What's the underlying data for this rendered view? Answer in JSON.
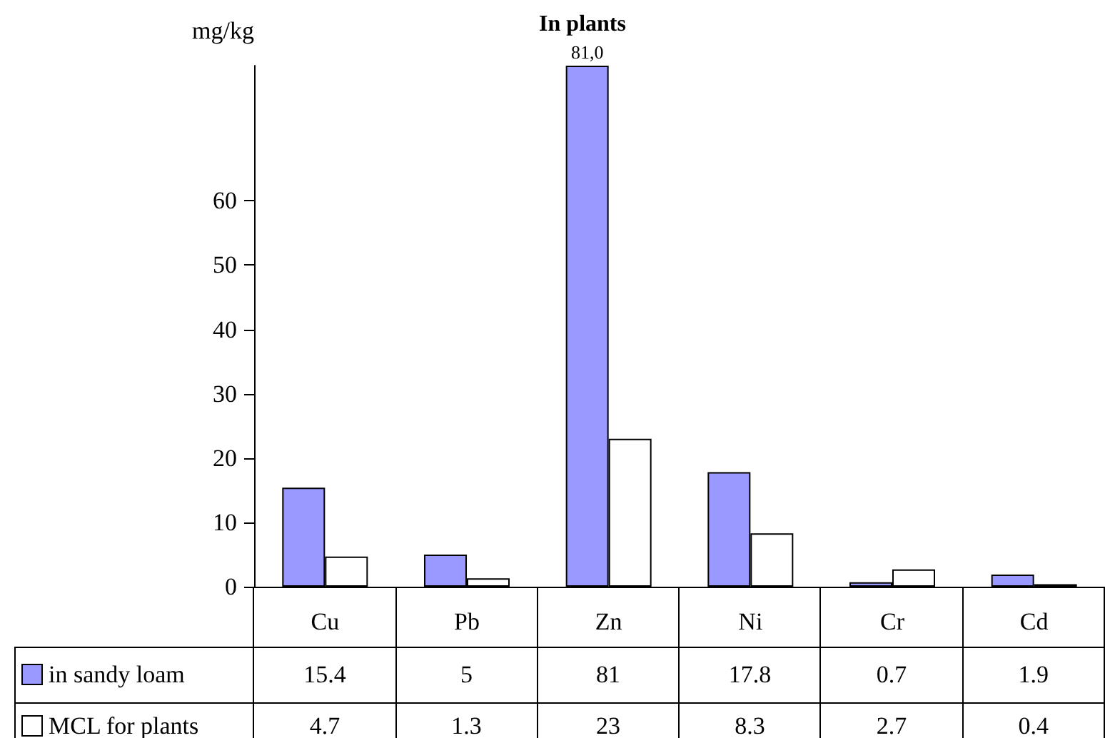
{
  "chart_data": {
    "type": "bar",
    "title": "In plants",
    "ylabel": "mg/kg",
    "categories": [
      "Cu",
      "Pb",
      "Zn",
      "Ni",
      "Cr",
      "Cd"
    ],
    "series": [
      {
        "name": "in sandy loam",
        "color": "#9999ff",
        "values": [
          15.4,
          5,
          81,
          17.8,
          0.7,
          1.9
        ]
      },
      {
        "name": "MCL for plants",
        "color": "#ffffff",
        "values": [
          4.7,
          1.3,
          23,
          8.3,
          2.7,
          0.4
        ]
      }
    ],
    "ylim": [
      0,
      81
    ],
    "yticks": [
      0,
      10,
      20,
      30,
      40,
      50,
      60
    ],
    "grid": false,
    "legend": "bottom",
    "data_labels": true,
    "annotations": [
      {
        "text": "81,0",
        "x": "Zn",
        "y": 81
      }
    ]
  }
}
